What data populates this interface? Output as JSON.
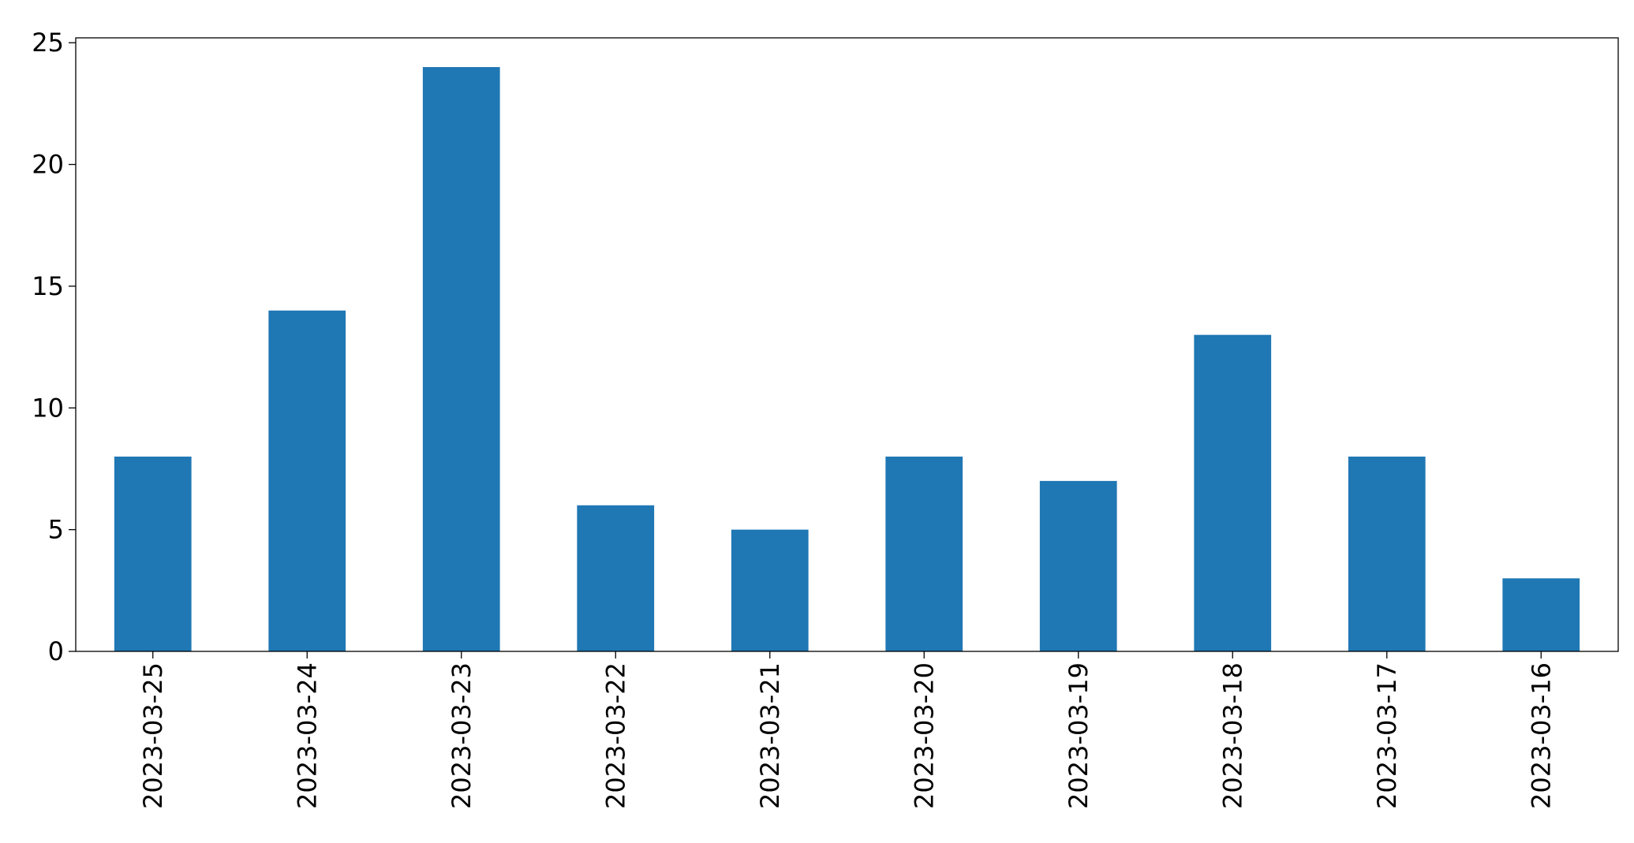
{
  "chart_data": {
    "type": "bar",
    "categories": [
      "2023-03-25",
      "2023-03-24",
      "2023-03-23",
      "2023-03-22",
      "2023-03-21",
      "2023-03-20",
      "2023-03-19",
      "2023-03-18",
      "2023-03-17",
      "2023-03-16"
    ],
    "values": [
      8,
      14,
      24,
      6,
      5,
      8,
      7,
      13,
      8,
      3
    ],
    "color": "#1f77b4",
    "ylim": [
      0,
      25.2
    ],
    "yticks": [
      0,
      5,
      10,
      15,
      20,
      25
    ],
    "grid": false
  }
}
